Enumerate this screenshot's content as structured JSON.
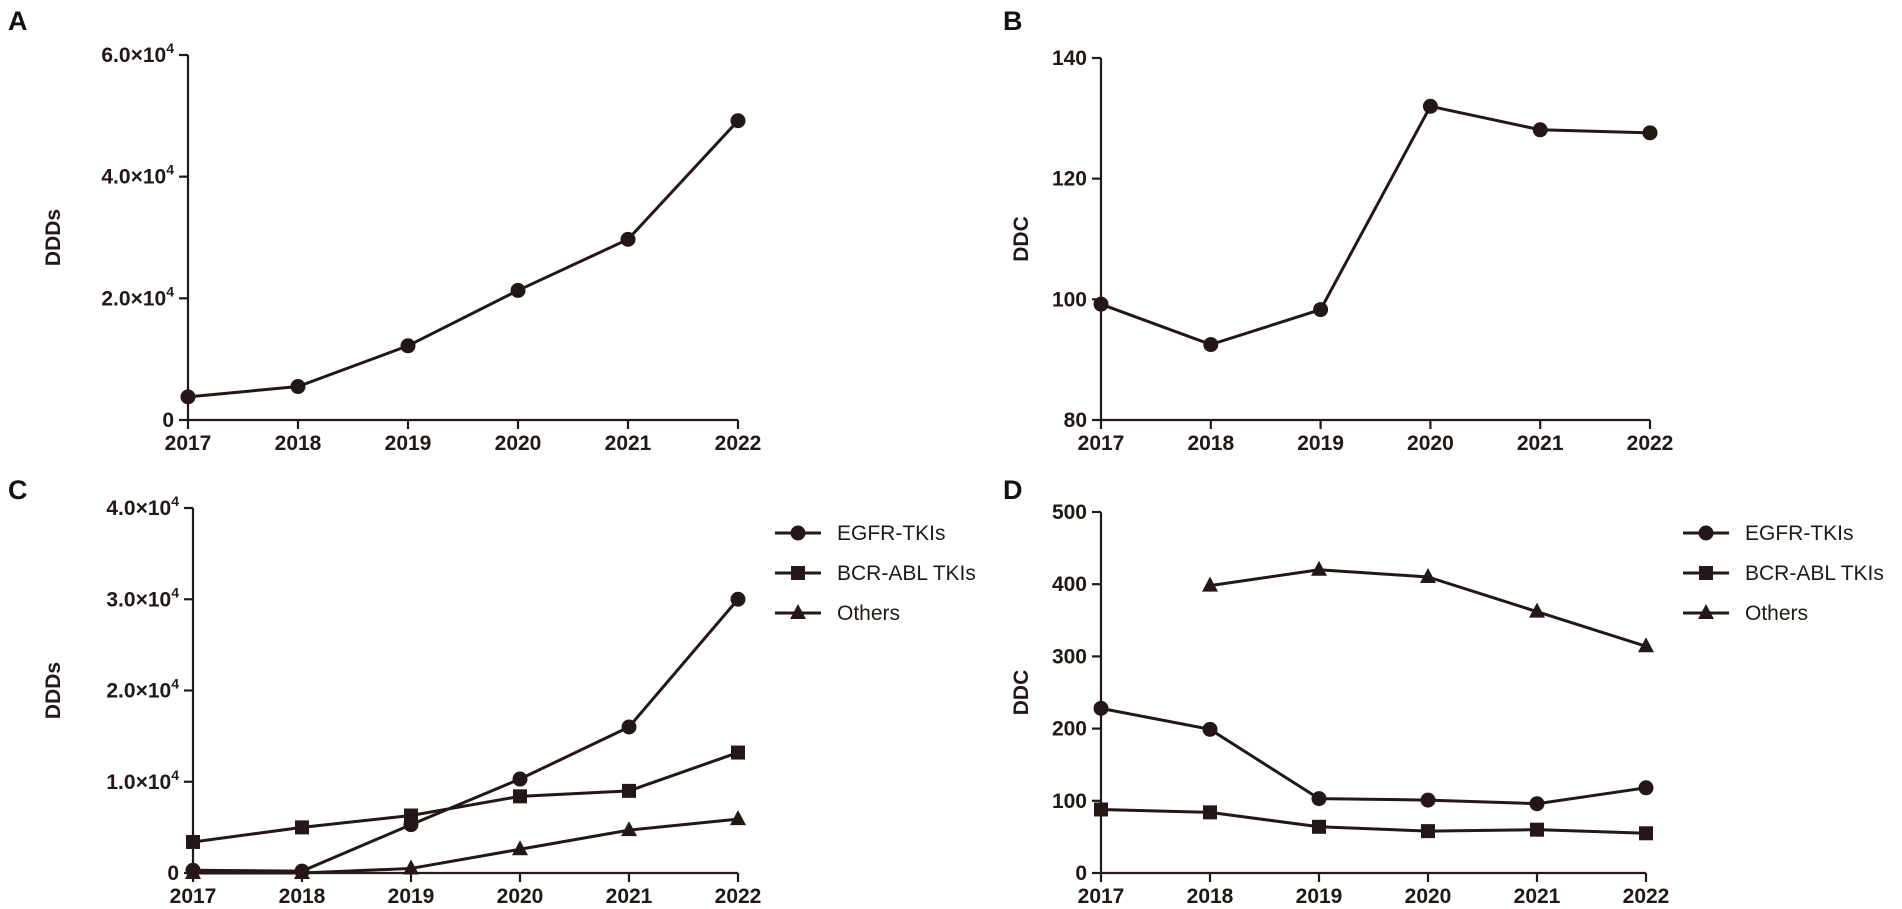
{
  "chart_data": [
    {
      "id": "A",
      "type": "line",
      "panel_label": "A",
      "categories": [
        "2017",
        "2018",
        "2019",
        "2020",
        "2021",
        "2022"
      ],
      "ylabel": "DDDs",
      "ylim": [
        0,
        60000
      ],
      "yticks": [
        {
          "value": 0,
          "mant": "0",
          "exp": ""
        },
        {
          "value": 20000,
          "mant": "2.0×10",
          "exp": "4"
        },
        {
          "value": 40000,
          "mant": "4.0×10",
          "exp": "4"
        },
        {
          "value": 60000,
          "mant": "6.0×10",
          "exp": "4"
        }
      ],
      "series": [
        {
          "name": "",
          "marker": "circle",
          "values": [
            3800,
            5500,
            12200,
            21300,
            29700,
            49200
          ]
        }
      ],
      "legend": null
    },
    {
      "id": "B",
      "type": "line",
      "panel_label": "B",
      "categories": [
        "2017",
        "2018",
        "2019",
        "2020",
        "2021",
        "2022"
      ],
      "ylabel": "DDC",
      "ylim": [
        80,
        140
      ],
      "yticks": [
        {
          "value": 80,
          "mant": "80",
          "exp": ""
        },
        {
          "value": 100,
          "mant": "100",
          "exp": ""
        },
        {
          "value": 120,
          "mant": "120",
          "exp": ""
        },
        {
          "value": 140,
          "mant": "140",
          "exp": ""
        }
      ],
      "series": [
        {
          "name": "",
          "marker": "circle",
          "values": [
            99.2,
            92.5,
            98.3,
            132.0,
            128.1,
            127.6
          ]
        }
      ],
      "legend": null
    },
    {
      "id": "C",
      "type": "line",
      "panel_label": "C",
      "categories": [
        "2017",
        "2018",
        "2019",
        "2020",
        "2021",
        "2022"
      ],
      "ylabel": "DDDs",
      "ylim": [
        0,
        40000
      ],
      "yticks": [
        {
          "value": 0,
          "mant": "0",
          "exp": ""
        },
        {
          "value": 10000,
          "mant": "1.0×10",
          "exp": "4"
        },
        {
          "value": 20000,
          "mant": "2.0×10",
          "exp": "4"
        },
        {
          "value": 30000,
          "mant": "3.0×10",
          "exp": "4"
        },
        {
          "value": 40000,
          "mant": "4.0×10",
          "exp": "4"
        }
      ],
      "series": [
        {
          "name": "EGFR-TKIs",
          "marker": "circle",
          "values": [
            300,
            200,
            5300,
            10300,
            16000,
            30000
          ]
        },
        {
          "name": "BCR-ABL TKIs",
          "marker": "square",
          "values": [
            3400,
            5000,
            6300,
            8400,
            9000,
            13200
          ]
        },
        {
          "name": "Others",
          "marker": "triangle",
          "values": [
            0,
            0,
            500,
            2600,
            4700,
            5900
          ]
        }
      ],
      "legend": "top-right-outside"
    },
    {
      "id": "D",
      "type": "line",
      "panel_label": "D",
      "categories": [
        "2017",
        "2018",
        "2019",
        "2020",
        "2021",
        "2022"
      ],
      "ylabel": "DDC",
      "ylim": [
        0,
        500
      ],
      "yticks": [
        {
          "value": 0,
          "mant": "0",
          "exp": ""
        },
        {
          "value": 100,
          "mant": "100",
          "exp": ""
        },
        {
          "value": 200,
          "mant": "200",
          "exp": ""
        },
        {
          "value": 300,
          "mant": "300",
          "exp": ""
        },
        {
          "value": 400,
          "mant": "400",
          "exp": ""
        },
        {
          "value": 500,
          "mant": "500",
          "exp": ""
        }
      ],
      "series": [
        {
          "name": "EGFR-TKIs",
          "marker": "circle",
          "values": [
            228,
            199,
            103,
            101,
            96,
            118
          ]
        },
        {
          "name": "BCR-ABL TKIs",
          "marker": "square",
          "values": [
            88,
            84,
            64,
            58,
            60,
            55
          ]
        },
        {
          "name": "Others",
          "marker": "triangle",
          "values": [
            null,
            398,
            420,
            410,
            362,
            314
          ]
        }
      ],
      "legend": "top-right-outside"
    }
  ]
}
